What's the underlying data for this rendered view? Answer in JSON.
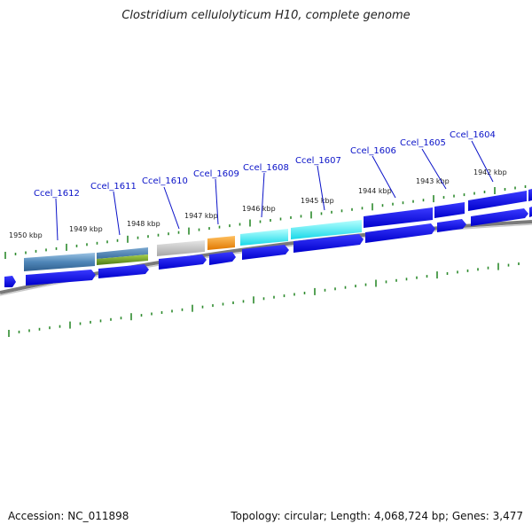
{
  "title": "Clostridium cellulolyticum H10, complete genome",
  "footer": {
    "accession": "Accession: NC_011898",
    "stats": "Topology: circular; Length: 4,068,724 bp; Genes: 3,477"
  },
  "colors": {
    "backbone": "#8a8a8a",
    "tick": "#2e8b2e",
    "cds": "#0a0ae8",
    "label": "#0a12c8"
  },
  "kbp_labels": [
    "1950 kbp",
    "1949 kbp",
    "1948 kbp",
    "1947 kbp",
    "1946 kbp",
    "1945 kbp",
    "1944 kbp",
    "1943 kbp",
    "1942 kbp"
  ],
  "gene_labels": [
    "Ccel_1612",
    "Ccel_1611",
    "Ccel_1610",
    "Ccel_1609",
    "Ccel_1608",
    "Ccel_1607",
    "Ccel_1606",
    "Ccel_1605",
    "Ccel_1604"
  ]
}
